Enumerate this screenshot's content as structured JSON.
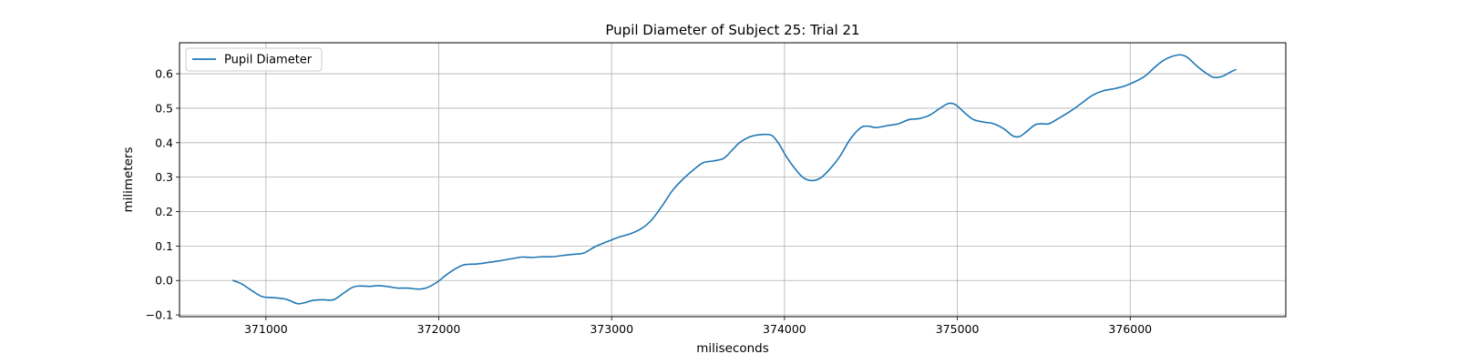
{
  "chart_data": {
    "type": "line",
    "title": "Pupil Diameter of Subject 25: Trial 21",
    "xlabel": "miliseconds",
    "ylabel": "milimeters",
    "xlim": [
      370500,
      376900
    ],
    "ylim": [
      -0.105,
      0.69
    ],
    "x_ticks": [
      {
        "value": 371000,
        "label": "371000"
      },
      {
        "value": 372000,
        "label": "372000"
      },
      {
        "value": 373000,
        "label": "373000"
      },
      {
        "value": 374000,
        "label": "374000"
      },
      {
        "value": 375000,
        "label": "375000"
      },
      {
        "value": 376000,
        "label": "376000"
      }
    ],
    "y_ticks": [
      {
        "value": -0.1,
        "label": "−0.1"
      },
      {
        "value": 0.0,
        "label": "0.0"
      },
      {
        "value": 0.1,
        "label": "0.1"
      },
      {
        "value": 0.2,
        "label": "0.2"
      },
      {
        "value": 0.3,
        "label": "0.3"
      },
      {
        "value": 0.4,
        "label": "0.4"
      },
      {
        "value": 0.5,
        "label": "0.5"
      },
      {
        "value": 0.6,
        "label": "0.6"
      }
    ],
    "grid": true,
    "legend_position": "top-left",
    "series": [
      {
        "name": "Pupil Diameter",
        "color": "#1f77b4",
        "x": [
          370810,
          370860,
          370920,
          370980,
          371050,
          371120,
          371180,
          371220,
          371270,
          371330,
          371390,
          371440,
          371500,
          371540,
          371600,
          371650,
          371710,
          371760,
          371820,
          371880,
          371930,
          371990,
          372040,
          372100,
          372150,
          372220,
          372280,
          372350,
          372420,
          372480,
          372540,
          372600,
          372660,
          372720,
          372780,
          372840,
          372900,
          372950,
          373000,
          373050,
          373110,
          373170,
          373230,
          373290,
          373350,
          373410,
          373470,
          373530,
          373590,
          373650,
          373700,
          373740,
          373790,
          373840,
          373890,
          373930,
          373970,
          374010,
          374060,
          374110,
          374160,
          374210,
          374260,
          374320,
          374380,
          374440,
          374480,
          374530,
          374600,
          374660,
          374720,
          374780,
          374840,
          374900,
          374950,
          374990,
          375040,
          375090,
          375150,
          375210,
          375270,
          375320,
          375360,
          375400,
          375450,
          375490,
          375530,
          375590,
          375650,
          375720,
          375780,
          375840,
          375910,
          375970,
          376040,
          376090,
          376140,
          376190,
          376240,
          376290,
          376330,
          376380,
          376430,
          376480,
          376530,
          376580,
          376610
        ],
        "y": [
          0.0,
          -0.01,
          -0.03,
          -0.047,
          -0.05,
          -0.055,
          -0.067,
          -0.065,
          -0.058,
          -0.056,
          -0.056,
          -0.04,
          -0.02,
          -0.016,
          -0.017,
          -0.015,
          -0.018,
          -0.022,
          -0.022,
          -0.025,
          -0.021,
          -0.005,
          0.015,
          0.035,
          0.046,
          0.048,
          0.052,
          0.057,
          0.063,
          0.068,
          0.067,
          0.069,
          0.069,
          0.073,
          0.076,
          0.08,
          0.097,
          0.108,
          0.118,
          0.127,
          0.136,
          0.15,
          0.175,
          0.215,
          0.26,
          0.293,
          0.32,
          0.342,
          0.347,
          0.355,
          0.38,
          0.4,
          0.415,
          0.422,
          0.424,
          0.42,
          0.395,
          0.36,
          0.325,
          0.298,
          0.29,
          0.298,
          0.322,
          0.36,
          0.41,
          0.443,
          0.448,
          0.444,
          0.45,
          0.455,
          0.467,
          0.47,
          0.48,
          0.5,
          0.514,
          0.51,
          0.488,
          0.468,
          0.46,
          0.455,
          0.44,
          0.42,
          0.418,
          0.432,
          0.452,
          0.455,
          0.455,
          0.472,
          0.49,
          0.515,
          0.537,
          0.55,
          0.557,
          0.565,
          0.58,
          0.595,
          0.618,
          0.638,
          0.65,
          0.655,
          0.648,
          0.625,
          0.605,
          0.59,
          0.592,
          0.605,
          0.612
        ]
      }
    ]
  }
}
